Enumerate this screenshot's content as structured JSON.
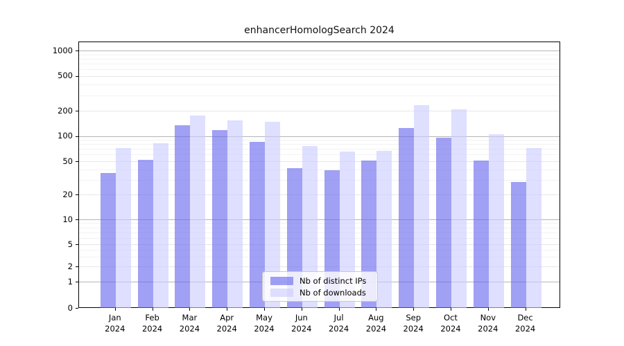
{
  "chart_data": {
    "type": "bar",
    "title": "enhancerHomologSearch 2024",
    "yscale": "symlog",
    "ylim": [
      0,
      1400
    ],
    "yticks": [
      0,
      1,
      2,
      5,
      10,
      20,
      50,
      100,
      200,
      500,
      1000
    ],
    "grid": true,
    "legend_position": "inside-bottom-center",
    "categories": [
      "Jan 2024",
      "Feb 2024",
      "Mar 2024",
      "Apr 2024",
      "May 2024",
      "Jun 2024",
      "Jul 2024",
      "Aug 2024",
      "Sep 2024",
      "Oct 2024",
      "Nov 2024",
      "Dec 2024"
    ],
    "series": [
      {
        "name": "Nb of distinct IPs",
        "color": "#6666ee",
        "values": [
          37,
          53,
          138,
          120,
          87,
          42,
          40,
          52,
          128,
          97,
          52,
          29
        ]
      },
      {
        "name": "Nb of downloads",
        "color": "#ccccff",
        "values": [
          73,
          83,
          180,
          155,
          150,
          78,
          66,
          68,
          235,
          212,
          107,
          73
        ]
      }
    ]
  }
}
